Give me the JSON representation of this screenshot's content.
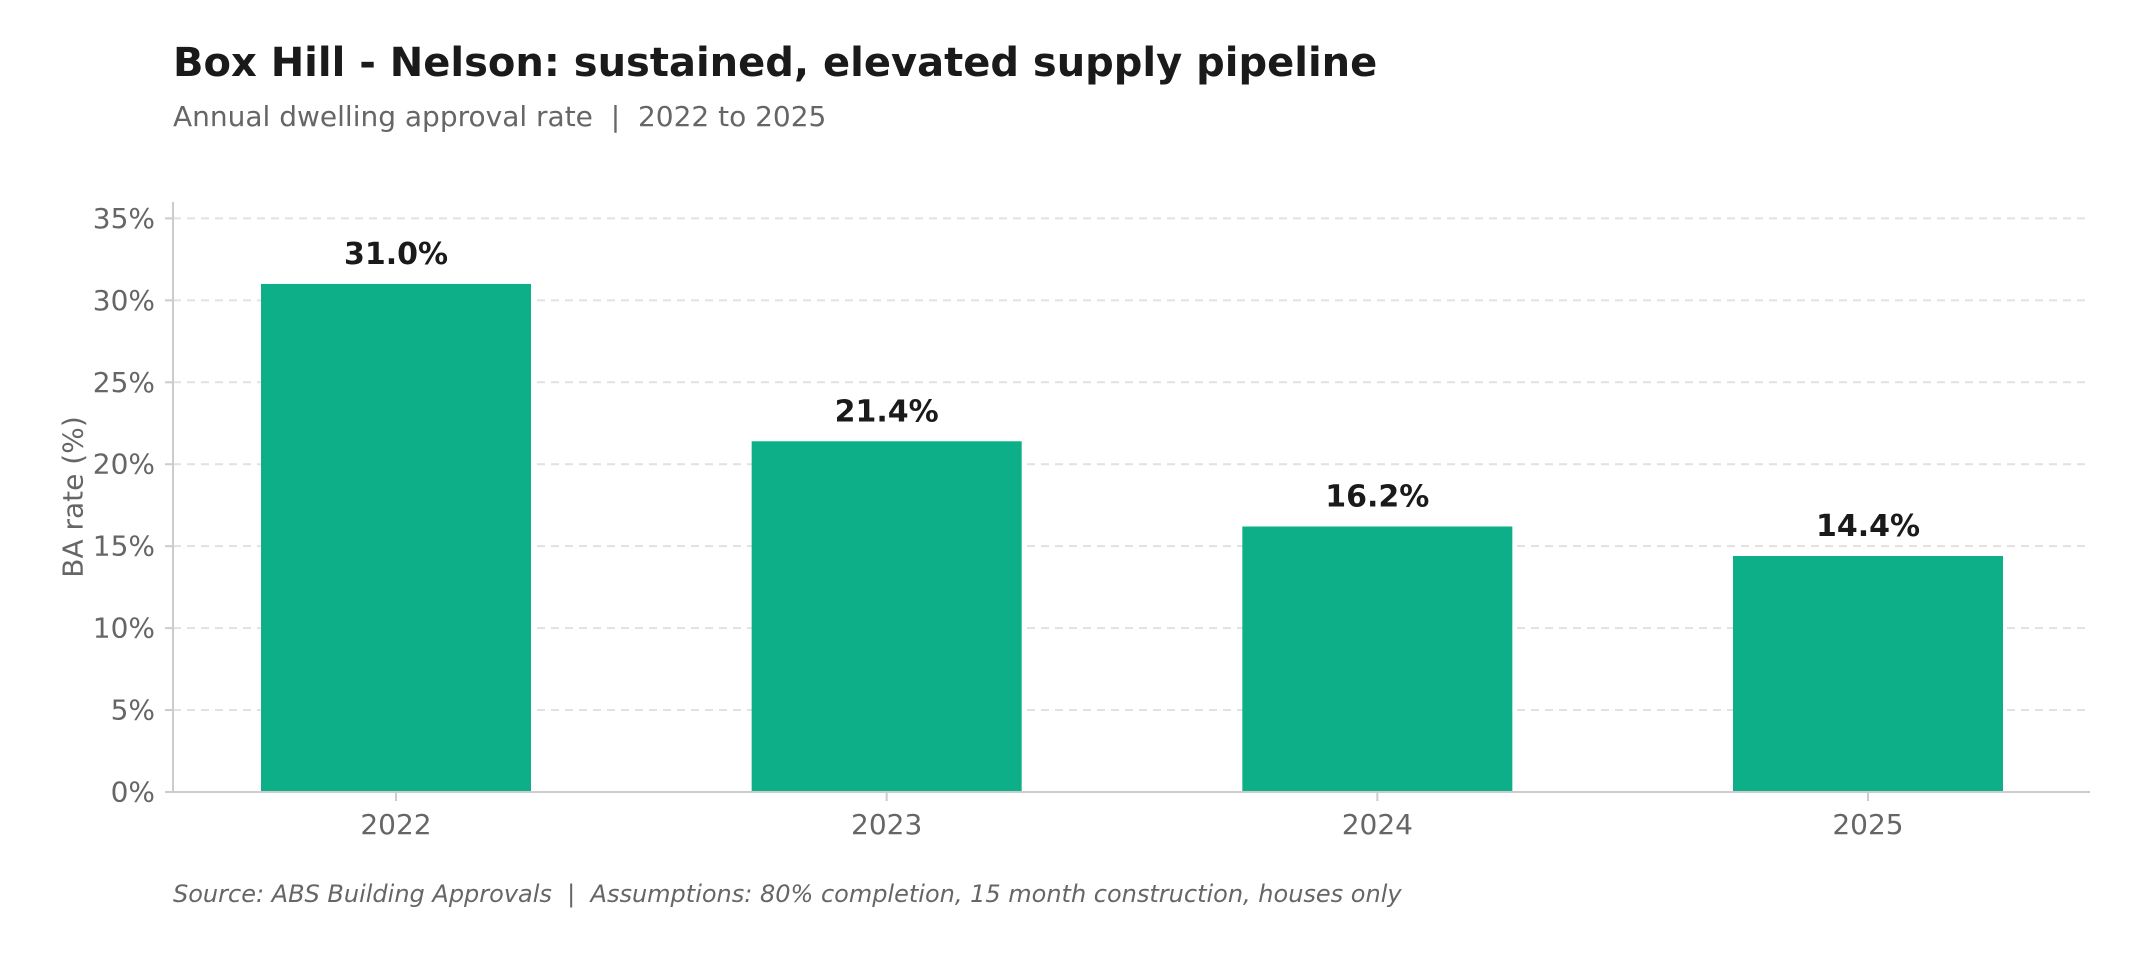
{
  "header": {
    "title": "Box Hill - Nelson: sustained, elevated supply pipeline",
    "subtitle": "Annual dwelling approval rate  |  2022 to 2025"
  },
  "footer": {
    "source": "Source: ABS Building Approvals  |  Assumptions: 80% completion, 15 month construction, houses only"
  },
  "colors": {
    "bar": "#0caf87",
    "grid": "#e1e1e1",
    "axis": "#cccccc",
    "text_muted": "#666666",
    "text_dark": "#1a1a1a"
  },
  "chart_data": {
    "type": "bar",
    "title": "Box Hill - Nelson: sustained, elevated supply pipeline",
    "subtitle": "Annual dwelling approval rate  |  2022 to 2025",
    "xlabel": "",
    "ylabel": "BA rate (%)",
    "categories": [
      "2022",
      "2023",
      "2024",
      "2025"
    ],
    "values": [
      31.0,
      21.4,
      16.2,
      14.4
    ],
    "value_labels": [
      "31.0%",
      "21.4%",
      "16.2%",
      "14.4%"
    ],
    "ylim": [
      0,
      36
    ],
    "yticks": [
      0,
      5,
      10,
      15,
      20,
      25,
      30,
      35
    ],
    "ytick_labels": [
      "0%",
      "5%",
      "10%",
      "15%",
      "20%",
      "25%",
      "30%",
      "35%"
    ],
    "grid": true,
    "legend": "none"
  }
}
